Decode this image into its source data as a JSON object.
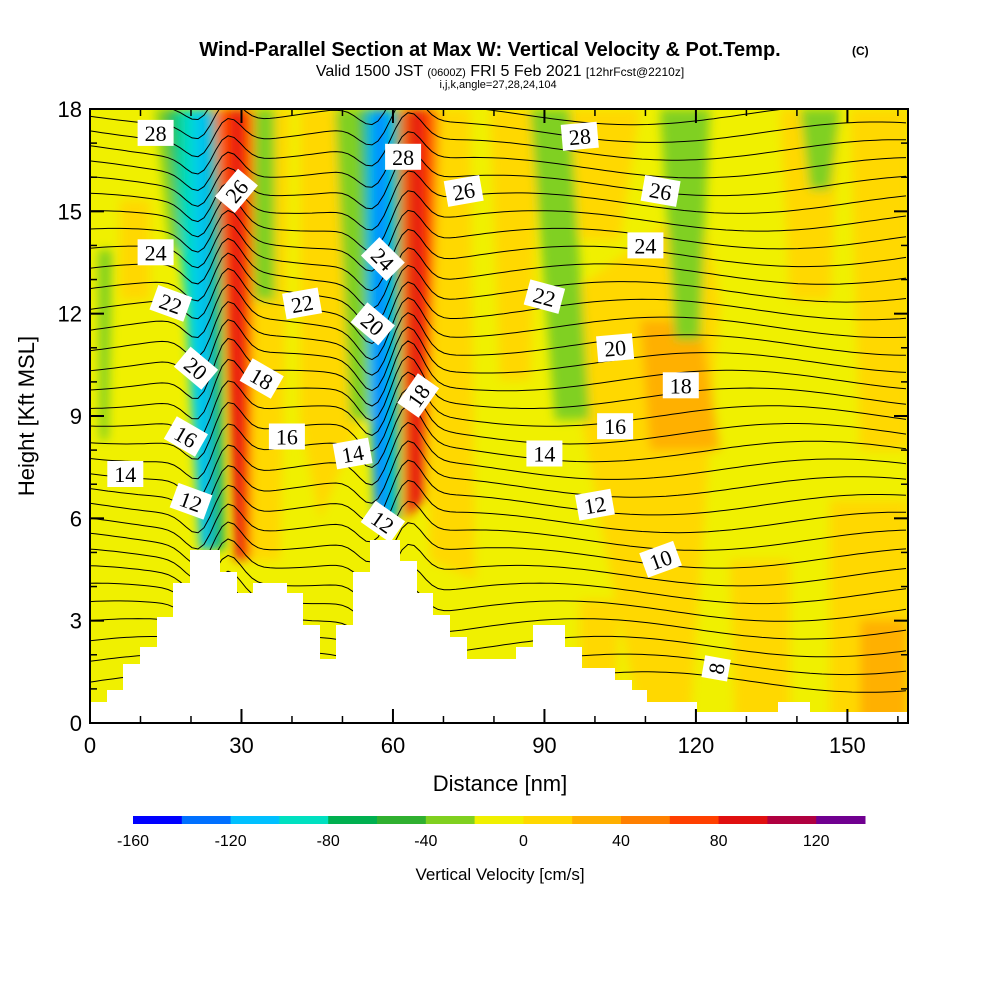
{
  "title": "Wind-Parallel Section at Max W: Vertical Velocity & Pot.Temp.",
  "copyright": "(C)",
  "subtitle": {
    "main_a": "Valid 1500 JST",
    "utc": "(0600Z)",
    "main_b": "FRI 5 Feb 2021",
    "fcst": "[12hrFcst@2210z]"
  },
  "grid_info": "i,j,k,angle=27,28,24,104",
  "chart_data": {
    "type": "contour-section",
    "xlabel": "Distance [nm]",
    "ylabel": "Height [Kft MSL]",
    "xlim": [
      0,
      162
    ],
    "ylim": [
      0,
      18
    ],
    "xticks": [
      "0",
      "30",
      "60",
      "90",
      "120",
      "150"
    ],
    "yticks": [
      "0",
      "3",
      "6",
      "9",
      "12",
      "15",
      "18"
    ],
    "colorbar": {
      "label": "Vertical Velocity [cm/s]",
      "ticks": [
        "-160",
        "-120",
        "-80",
        "-40",
        "0",
        "40",
        "80",
        "120"
      ],
      "range": [
        -160,
        140
      ],
      "step": 20,
      "colors": [
        "#0000ff",
        "#0070ff",
        "#00c0ff",
        "#00e0c0",
        "#00b050",
        "#30b030",
        "#80d020",
        "#f0f000",
        "#ffd800",
        "#ffb000",
        "#ff8000",
        "#ff4000",
        "#e01010",
        "#b00040",
        "#700090"
      ]
    },
    "theta_contour_labels": [
      {
        "label": "28",
        "x": 13,
        "y": 17.3,
        "angle": 0
      },
      {
        "label": "26",
        "x": 29,
        "y": 15.6,
        "angle": -50
      },
      {
        "label": "28",
        "x": 62,
        "y": 16.6,
        "angle": 0
      },
      {
        "label": "26",
        "x": 74,
        "y": 15.6,
        "angle": -10
      },
      {
        "label": "28",
        "x": 97,
        "y": 17.2,
        "angle": -5
      },
      {
        "label": "26",
        "x": 113,
        "y": 15.6,
        "angle": 10
      },
      {
        "label": "24",
        "x": 13,
        "y": 13.8,
        "angle": 0
      },
      {
        "label": "24",
        "x": 58,
        "y": 13.6,
        "angle": 45
      },
      {
        "label": "24",
        "x": 110,
        "y": 14.0,
        "angle": 0
      },
      {
        "label": "22",
        "x": 16,
        "y": 12.3,
        "angle": 20
      },
      {
        "label": "22",
        "x": 42,
        "y": 12.3,
        "angle": -10
      },
      {
        "label": "22",
        "x": 90,
        "y": 12.5,
        "angle": 15
      },
      {
        "label": "20",
        "x": 56,
        "y": 11.7,
        "angle": 40
      },
      {
        "label": "20",
        "x": 104,
        "y": 11.0,
        "angle": -5
      },
      {
        "label": "20",
        "x": 21,
        "y": 10.4,
        "angle": 40
      },
      {
        "label": "18",
        "x": 34,
        "y": 10.1,
        "angle": 30
      },
      {
        "label": "18",
        "x": 65,
        "y": 9.6,
        "angle": -55
      },
      {
        "label": "18",
        "x": 117,
        "y": 9.9,
        "angle": 0
      },
      {
        "label": "16",
        "x": 19,
        "y": 8.4,
        "angle": 30
      },
      {
        "label": "16",
        "x": 39,
        "y": 8.4,
        "angle": 0
      },
      {
        "label": "16",
        "x": 104,
        "y": 8.7,
        "angle": 0
      },
      {
        "label": "14",
        "x": 7,
        "y": 7.3,
        "angle": 0
      },
      {
        "label": "14",
        "x": 52,
        "y": 7.9,
        "angle": -10
      },
      {
        "label": "14",
        "x": 90,
        "y": 7.9,
        "angle": 0
      },
      {
        "label": "12",
        "x": 20,
        "y": 6.5,
        "angle": 20
      },
      {
        "label": "12",
        "x": 100,
        "y": 6.4,
        "angle": -10
      },
      {
        "label": "12",
        "x": 58,
        "y": 5.9,
        "angle": 35
      },
      {
        "label": "10",
        "x": 113,
        "y": 4.8,
        "angle": -20
      },
      {
        "label": "8",
        "x": 124,
        "y": 1.6,
        "angle": -80
      }
    ]
  }
}
